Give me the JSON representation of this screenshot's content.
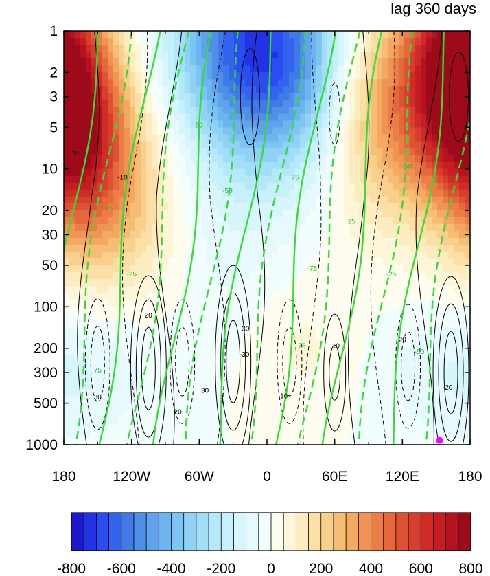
{
  "chart_data": {
    "type": "heatmap",
    "title_right": "lag 360 days",
    "x": {
      "ticks": [
        -180,
        -120,
        -60,
        0,
        60,
        120,
        180
      ],
      "tick_labels": [
        "180",
        "120W",
        "60W",
        "0",
        "60E",
        "120E",
        "180"
      ],
      "range": [
        -180,
        180
      ]
    },
    "y": {
      "scale": "log",
      "reversed": true,
      "ticks": [
        1,
        2,
        3,
        5,
        10,
        20,
        30,
        50,
        100,
        200,
        300,
        500,
        1000
      ],
      "tick_labels": [
        "1",
        "2",
        "3",
        "5",
        "10",
        "20",
        "30",
        "50",
        "100",
        "200",
        "300",
        "500",
        "1000"
      ],
      "range": [
        1,
        1000
      ]
    },
    "colorbar": {
      "levels": [
        -800,
        -750,
        -700,
        -650,
        -600,
        -550,
        -500,
        -450,
        -400,
        -350,
        -300,
        -250,
        -200,
        -150,
        -100,
        -50,
        0,
        50,
        100,
        150,
        200,
        250,
        300,
        350,
        400,
        450,
        500,
        550,
        600,
        650,
        700,
        750,
        800
      ],
      "tick_labels": [
        "-800",
        "-600",
        "-400",
        "-200",
        "0",
        "200",
        "400",
        "600",
        "800"
      ],
      "tick_values": [
        -800,
        -600,
        -400,
        -200,
        0,
        200,
        400,
        600,
        800
      ],
      "colors": [
        "#1a1acc",
        "#2233e6",
        "#2a4df0",
        "#3464ee",
        "#3f7ae8",
        "#4f8fe6",
        "#5ea3ec",
        "#6db5f0",
        "#7cc4f2",
        "#8fd2f5",
        "#a2def8",
        "#b5e8fa",
        "#c6f0fb",
        "#d6f6fc",
        "#e6fafd",
        "#f2fdfe",
        "#fefdf0",
        "#fdf6d8",
        "#fcecc0",
        "#fbdfa6",
        "#f9cf8c",
        "#f6bd74",
        "#f3a962",
        "#ef9452",
        "#ea7e46",
        "#e4683c",
        "#dd5234",
        "#d63e2e",
        "#cf2c28",
        "#c41e24",
        "#b4121f",
        "#9c0a1b"
      ]
    },
    "filled_field": [
      {
        "lon": -150,
        "p": 8,
        "value": 450
      },
      {
        "lon": -130,
        "p": 20,
        "value": 250
      },
      {
        "lon": -20,
        "p": 1.5,
        "value": -550
      },
      {
        "lon": 20,
        "p": 2,
        "value": -350
      },
      {
        "lon": 160,
        "p": 1.5,
        "value": 600
      },
      {
        "lon": 140,
        "p": 5,
        "value": 400
      },
      {
        "lon": -150,
        "p": 250,
        "value": -100
      },
      {
        "lon": 30,
        "p": 200,
        "value": 100
      },
      {
        "lon": 150,
        "p": 300,
        "value": -50
      }
    ],
    "contour_labels_black": [
      "10",
      "-10",
      "20",
      "-20",
      "30",
      "-30"
    ],
    "contour_labels_green": [
      "25",
      "-25",
      "50",
      "-50",
      "75",
      "-75"
    ],
    "marker": {
      "lon": 153,
      "p": 930,
      "color": "#ff00ff"
    }
  }
}
